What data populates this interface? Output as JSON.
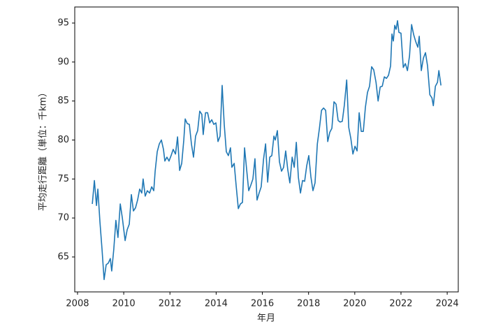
{
  "chart_data": {
    "type": "line",
    "x_label": "年月",
    "y_label": "平均走行距離（単位：千km）",
    "x": [
      2008.64,
      2008.73,
      2008.82,
      2008.88,
      2008.97,
      2009.06,
      2009.15,
      2009.24,
      2009.33,
      2009.42,
      2009.48,
      2009.57,
      2009.66,
      2009.75,
      2009.85,
      2009.94,
      2010.06,
      2010.15,
      2010.24,
      2010.33,
      2010.42,
      2010.51,
      2010.6,
      2010.69,
      2010.78,
      2010.84,
      2010.93,
      2011.02,
      2011.12,
      2011.21,
      2011.3,
      2011.36,
      2011.45,
      2011.54,
      2011.63,
      2011.72,
      2011.78,
      2011.87,
      2011.96,
      2012.05,
      2012.14,
      2012.24,
      2012.33,
      2012.42,
      2012.51,
      2012.6,
      2012.66,
      2012.75,
      2012.84,
      2012.93,
      2013.02,
      2013.11,
      2013.2,
      2013.29,
      2013.38,
      2013.44,
      2013.54,
      2013.63,
      2013.72,
      2013.81,
      2013.9,
      2013.99,
      2014.08,
      2014.17,
      2014.26,
      2014.35,
      2014.44,
      2014.53,
      2014.62,
      2014.68,
      2014.78,
      2014.87,
      2014.96,
      2015.05,
      2015.14,
      2015.23,
      2015.32,
      2015.41,
      2015.5,
      2015.59,
      2015.68,
      2015.77,
      2015.86,
      2015.95,
      2016.05,
      2016.14,
      2016.23,
      2016.32,
      2016.41,
      2016.5,
      2016.56,
      2016.65,
      2016.74,
      2016.83,
      2016.92,
      2017.01,
      2017.1,
      2017.19,
      2017.29,
      2017.38,
      2017.47,
      2017.56,
      2017.65,
      2017.74,
      2017.83,
      2017.92,
      2018.01,
      2018.1,
      2018.19,
      2018.28,
      2018.38,
      2018.47,
      2018.56,
      2018.65,
      2018.74,
      2018.83,
      2018.92,
      2019.01,
      2019.1,
      2019.19,
      2019.28,
      2019.37,
      2019.46,
      2019.55,
      2019.65,
      2019.74,
      2019.83,
      2019.92,
      2020.01,
      2020.1,
      2020.19,
      2020.28,
      2020.37,
      2020.46,
      2020.55,
      2020.64,
      2020.73,
      2020.82,
      2020.92,
      2021.01,
      2021.1,
      2021.19,
      2021.28,
      2021.37,
      2021.46,
      2021.55,
      2021.61,
      2021.67,
      2021.73,
      2021.79,
      2021.85,
      2021.91,
      2022.0,
      2022.1,
      2022.19,
      2022.28,
      2022.37,
      2022.46,
      2022.55,
      2022.64,
      2022.73,
      2022.79,
      2022.88,
      2022.97,
      2023.06,
      2023.15,
      2023.25,
      2023.34,
      2023.4,
      2023.49,
      2023.58,
      2023.64,
      2023.73
    ],
    "series": [
      {
        "color": "#1f77b4",
        "values": [
          71.8,
          74.8,
          71.6,
          73.7,
          69.5,
          66,
          62.1,
          64,
          64.2,
          64.8,
          63.2,
          66,
          69.7,
          67.5,
          71.8,
          70,
          67.1,
          68.5,
          69.2,
          73,
          70.9,
          71.3,
          72.3,
          73.7,
          73.2,
          75,
          72.8,
          73.5,
          73.2,
          74,
          73.5,
          76,
          78.5,
          79.5,
          80,
          78.8,
          77.3,
          77.8,
          77.3,
          78,
          78.8,
          78.2,
          80.4,
          76.1,
          77,
          80,
          82.7,
          82.1,
          82,
          79.5,
          77.8,
          80.5,
          81.2,
          83.7,
          83.3,
          80.7,
          83.5,
          83.5,
          82.2,
          82.6,
          82,
          82.2,
          79.8,
          80.5,
          87,
          82,
          78.5,
          78,
          79,
          76.5,
          77,
          74,
          71.2,
          71.8,
          72,
          79,
          76.2,
          73.5,
          74.2,
          75,
          77.6,
          72.3,
          73.2,
          74,
          77.5,
          79.5,
          74.6,
          77.8,
          78,
          80.5,
          80,
          81.2,
          77.2,
          76,
          76.5,
          78.6,
          76.2,
          74.5,
          77.8,
          76.5,
          79.7,
          75.2,
          73.2,
          74.8,
          74.7,
          76.7,
          78,
          75.3,
          73.5,
          74.5,
          79.5,
          81.5,
          83.8,
          84.1,
          83.8,
          79.8,
          81,
          81.5,
          84.9,
          84.6,
          82.5,
          82.3,
          82.4,
          84.5,
          87.7,
          81.6,
          80.2,
          78.2,
          79.2,
          78.6,
          83.5,
          81.1,
          81.1,
          84.2,
          86.1,
          86.9,
          89.4,
          89,
          87.4,
          85,
          86.8,
          86.9,
          88.1,
          87.9,
          88.3,
          89.5,
          93.6,
          92.7,
          94.7,
          94.2,
          95.3,
          93.8,
          93.7,
          89.3,
          89.8,
          88.9,
          90.8,
          94.8,
          93.5,
          92.6,
          91.9,
          93.3,
          88.9,
          90.5,
          91.2,
          89.5,
          85.8,
          85.4,
          84.4,
          86.9,
          87.4,
          88.9,
          87
        ]
      }
    ],
    "xlim": [
      2007.88,
      2024.48
    ],
    "xticks": [
      2008,
      2010,
      2012,
      2014,
      2016,
      2018,
      2020,
      2022,
      2024
    ],
    "ylim": [
      60.52,
      97.06
    ],
    "yticks": [
      65,
      70,
      75,
      80,
      85,
      90,
      95
    ],
    "grid": false
  }
}
